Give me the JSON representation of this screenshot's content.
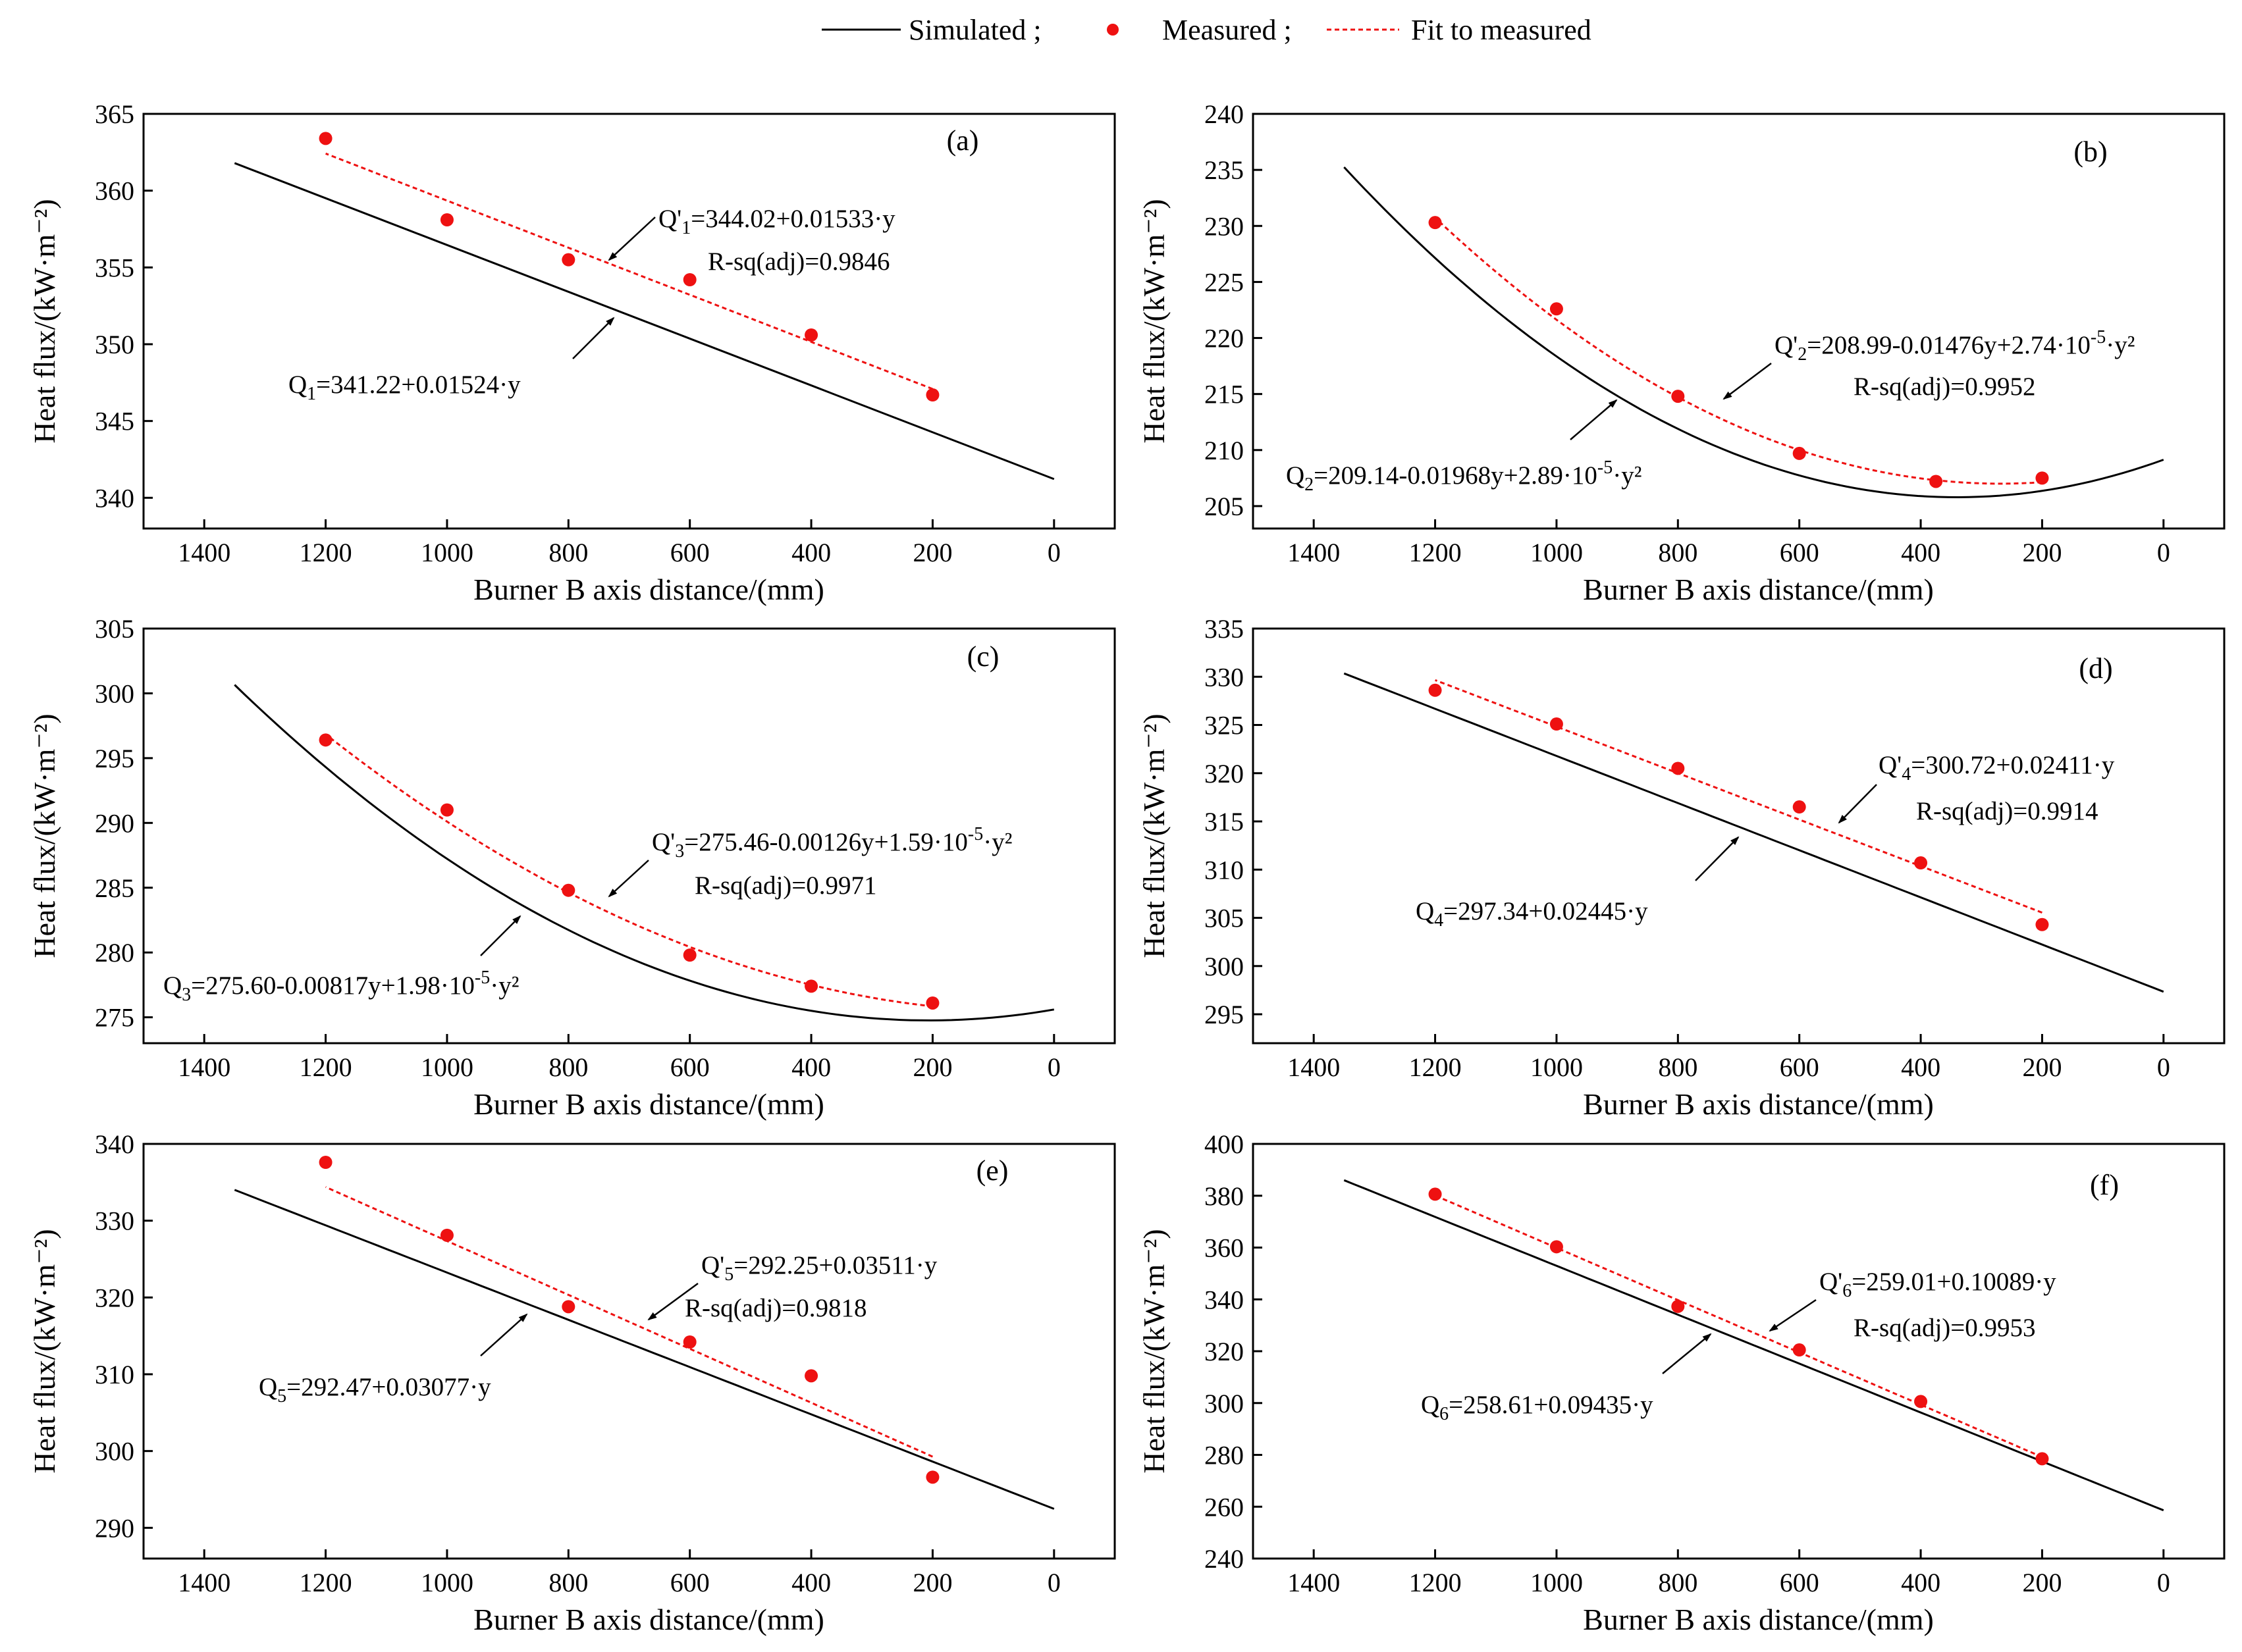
{
  "legend": {
    "simulated": "Simulated ;",
    "measured": "Measured ;",
    "fit": "Fit to measured"
  },
  "colors": {
    "simulated": "#000000",
    "measured": "#ee1111",
    "fit": "#ee1111",
    "axis": "#000000"
  },
  "chart_data": [
    {
      "panel": "(a)",
      "type": "scatter",
      "xlabel": "Burner B axis distance/(mm)",
      "ylabel": "Heat flux/(kW·m⁻²)",
      "xlim": [
        1500,
        -100
      ],
      "ylim": [
        338,
        365
      ],
      "xticks": [
        1400,
        1200,
        1000,
        800,
        600,
        400,
        200,
        0
      ],
      "yticks": [
        340,
        345,
        350,
        355,
        360,
        365
      ],
      "measured": {
        "x": [
          1200,
          1000,
          800,
          600,
          400,
          200
        ],
        "y": [
          363.4,
          358.1,
          355.5,
          354.2,
          350.6,
          346.7
        ]
      },
      "fit": {
        "coef": [
          344.02,
          0.01533,
          0
        ],
        "range": [
          200,
          1200
        ],
        "label_parts": [
          "Q'",
          "1",
          "",
          "=344.02+0.01533·y",
          "",
          ""
        ],
        "rsq": "R-sq(adj)=0.9846"
      },
      "simulated": {
        "coef": [
          341.22,
          0.01524,
          0
        ],
        "range": [
          0,
          1350
        ],
        "label_parts": [
          "Q",
          "1",
          "",
          "=341.22+0.01524·y",
          "",
          ""
        ]
      }
    },
    {
      "panel": "(b)",
      "type": "scatter",
      "xlabel": "Burner B axis distance/(mm)",
      "ylabel": "Heat flux/(kW·m⁻²)",
      "xlim": [
        1500,
        -100
      ],
      "ylim": [
        203,
        240
      ],
      "xticks": [
        1400,
        1200,
        1000,
        800,
        600,
        400,
        200,
        0
      ],
      "yticks": [
        205,
        210,
        215,
        220,
        225,
        230,
        235,
        240
      ],
      "measured": {
        "x": [
          1200,
          1000,
          800,
          600,
          375,
          200
        ],
        "y": [
          230.3,
          222.6,
          214.8,
          209.7,
          207.2,
          207.5
        ]
      },
      "fit": {
        "coef": [
          208.99,
          -0.01476,
          2.74e-05
        ],
        "range": [
          200,
          1200
        ],
        "label_parts": [
          "Q'",
          "2",
          "",
          "=208.99-0.01476y+2.74·10",
          "-5",
          "·y²"
        ],
        "rsq": "R-sq(adj)=0.9952"
      },
      "simulated": {
        "coef": [
          209.14,
          -0.01968,
          2.89e-05
        ],
        "range": [
          0,
          1350
        ],
        "label_parts": [
          "Q",
          "2",
          "",
          "=209.14-0.01968y+2.89·10",
          "-5",
          "·y²"
        ]
      }
    },
    {
      "panel": "(c)",
      "type": "scatter",
      "xlabel": "Burner B axis distance/(mm)",
      "ylabel": "Heat flux/(kW·m⁻²)",
      "xlim": [
        1500,
        -100
      ],
      "ylim": [
        273,
        305
      ],
      "xticks": [
        1400,
        1200,
        1000,
        800,
        600,
        400,
        200,
        0
      ],
      "yticks": [
        275,
        280,
        285,
        290,
        295,
        300,
        305
      ],
      "measured": {
        "x": [
          1200,
          1000,
          800,
          600,
          400,
          200
        ],
        "y": [
          296.4,
          291.0,
          284.8,
          279.8,
          277.4,
          276.1
        ]
      },
      "fit": {
        "coef": [
          275.46,
          -0.00126,
          1.59e-05
        ],
        "range": [
          200,
          1200
        ],
        "label_parts": [
          "Q'",
          "3",
          "",
          "=275.46-0.00126y+1.59·10",
          "-5",
          "·y²"
        ],
        "rsq": "R-sq(adj)=0.9971"
      },
      "simulated": {
        "coef": [
          275.6,
          -0.00817,
          1.98e-05
        ],
        "range": [
          0,
          1350
        ],
        "label_parts": [
          "Q",
          "3",
          "",
          "=275.60-0.00817y+1.98·10",
          "-5",
          "·y²"
        ]
      }
    },
    {
      "panel": "(d)",
      "type": "scatter",
      "xlabel": "Burner B axis distance/(mm)",
      "ylabel": "Heat flux/(kW·m⁻²)",
      "xlim": [
        1500,
        -100
      ],
      "ylim": [
        292,
        335
      ],
      "xticks": [
        1400,
        1200,
        1000,
        800,
        600,
        400,
        200,
        0
      ],
      "yticks": [
        295,
        300,
        305,
        310,
        315,
        320,
        325,
        330,
        335
      ],
      "measured": {
        "x": [
          1200,
          1000,
          800,
          600,
          400,
          200
        ],
        "y": [
          328.6,
          325.1,
          320.5,
          316.5,
          310.7,
          304.3
        ]
      },
      "fit": {
        "coef": [
          300.72,
          0.02411,
          0
        ],
        "range": [
          200,
          1200
        ],
        "label_parts": [
          "Q'",
          "4",
          "",
          "=300.72+0.02411·y",
          "",
          ""
        ],
        "rsq": "R-sq(adj)=0.9914"
      },
      "simulated": {
        "coef": [
          297.34,
          0.02445,
          0
        ],
        "range": [
          0,
          1350
        ],
        "label_parts": [
          "Q",
          "4",
          "",
          "=297.34+0.02445·y",
          "",
          ""
        ]
      }
    },
    {
      "panel": "(e)",
      "type": "scatter",
      "xlabel": "Burner B axis distance/(mm)",
      "ylabel": "Heat flux/(kW·m⁻²)",
      "xlim": [
        1500,
        -100
      ],
      "ylim": [
        286,
        340
      ],
      "xticks": [
        1400,
        1200,
        1000,
        800,
        600,
        400,
        200,
        0
      ],
      "yticks": [
        290,
        300,
        310,
        320,
        330,
        340
      ],
      "measured": {
        "x": [
          1200,
          1000,
          800,
          600,
          400,
          200
        ],
        "y": [
          337.6,
          328.1,
          318.8,
          314.2,
          309.8,
          296.6
        ]
      },
      "fit": {
        "coef": [
          292.25,
          0.03511,
          0
        ],
        "range": [
          200,
          1200
        ],
        "label_parts": [
          "Q'",
          "5",
          "",
          "=292.25+0.03511·y",
          "",
          ""
        ],
        "rsq": "R-sq(adj)=0.9818"
      },
      "simulated": {
        "coef": [
          292.47,
          0.03077,
          0
        ],
        "range": [
          0,
          1350
        ],
        "label_parts": [
          "Q",
          "5",
          "",
          "=292.47+0.03077·y",
          "",
          ""
        ]
      }
    },
    {
      "panel": "(f)",
      "type": "scatter",
      "xlabel": "Burner B axis distance/(mm)",
      "ylabel": "Heat flux/(kW·m⁻²)",
      "xlim": [
        1500,
        -100
      ],
      "ylim": [
        240,
        400
      ],
      "xticks": [
        1400,
        1200,
        1000,
        800,
        600,
        400,
        200,
        0
      ],
      "yticks": [
        240,
        260,
        280,
        300,
        320,
        340,
        360,
        380,
        400
      ],
      "measured": {
        "x": [
          1200,
          1000,
          800,
          600,
          400,
          200
        ],
        "y": [
          380.6,
          360.3,
          337.3,
          320.5,
          300.6,
          278.5
        ]
      },
      "fit": {
        "coef": [
          259.01,
          0.10089,
          0
        ],
        "range": [
          200,
          1200
        ],
        "label_parts": [
          "Q'",
          "6",
          "",
          "=259.01+0.10089·y",
          "",
          ""
        ],
        "rsq": "R-sq(adj)=0.9953"
      },
      "simulated": {
        "coef": [
          258.61,
          0.09435,
          0
        ],
        "range": [
          0,
          1350
        ],
        "label_parts": [
          "Q",
          "6",
          "",
          "=258.61+0.09435·y",
          "",
          ""
        ]
      }
    }
  ]
}
